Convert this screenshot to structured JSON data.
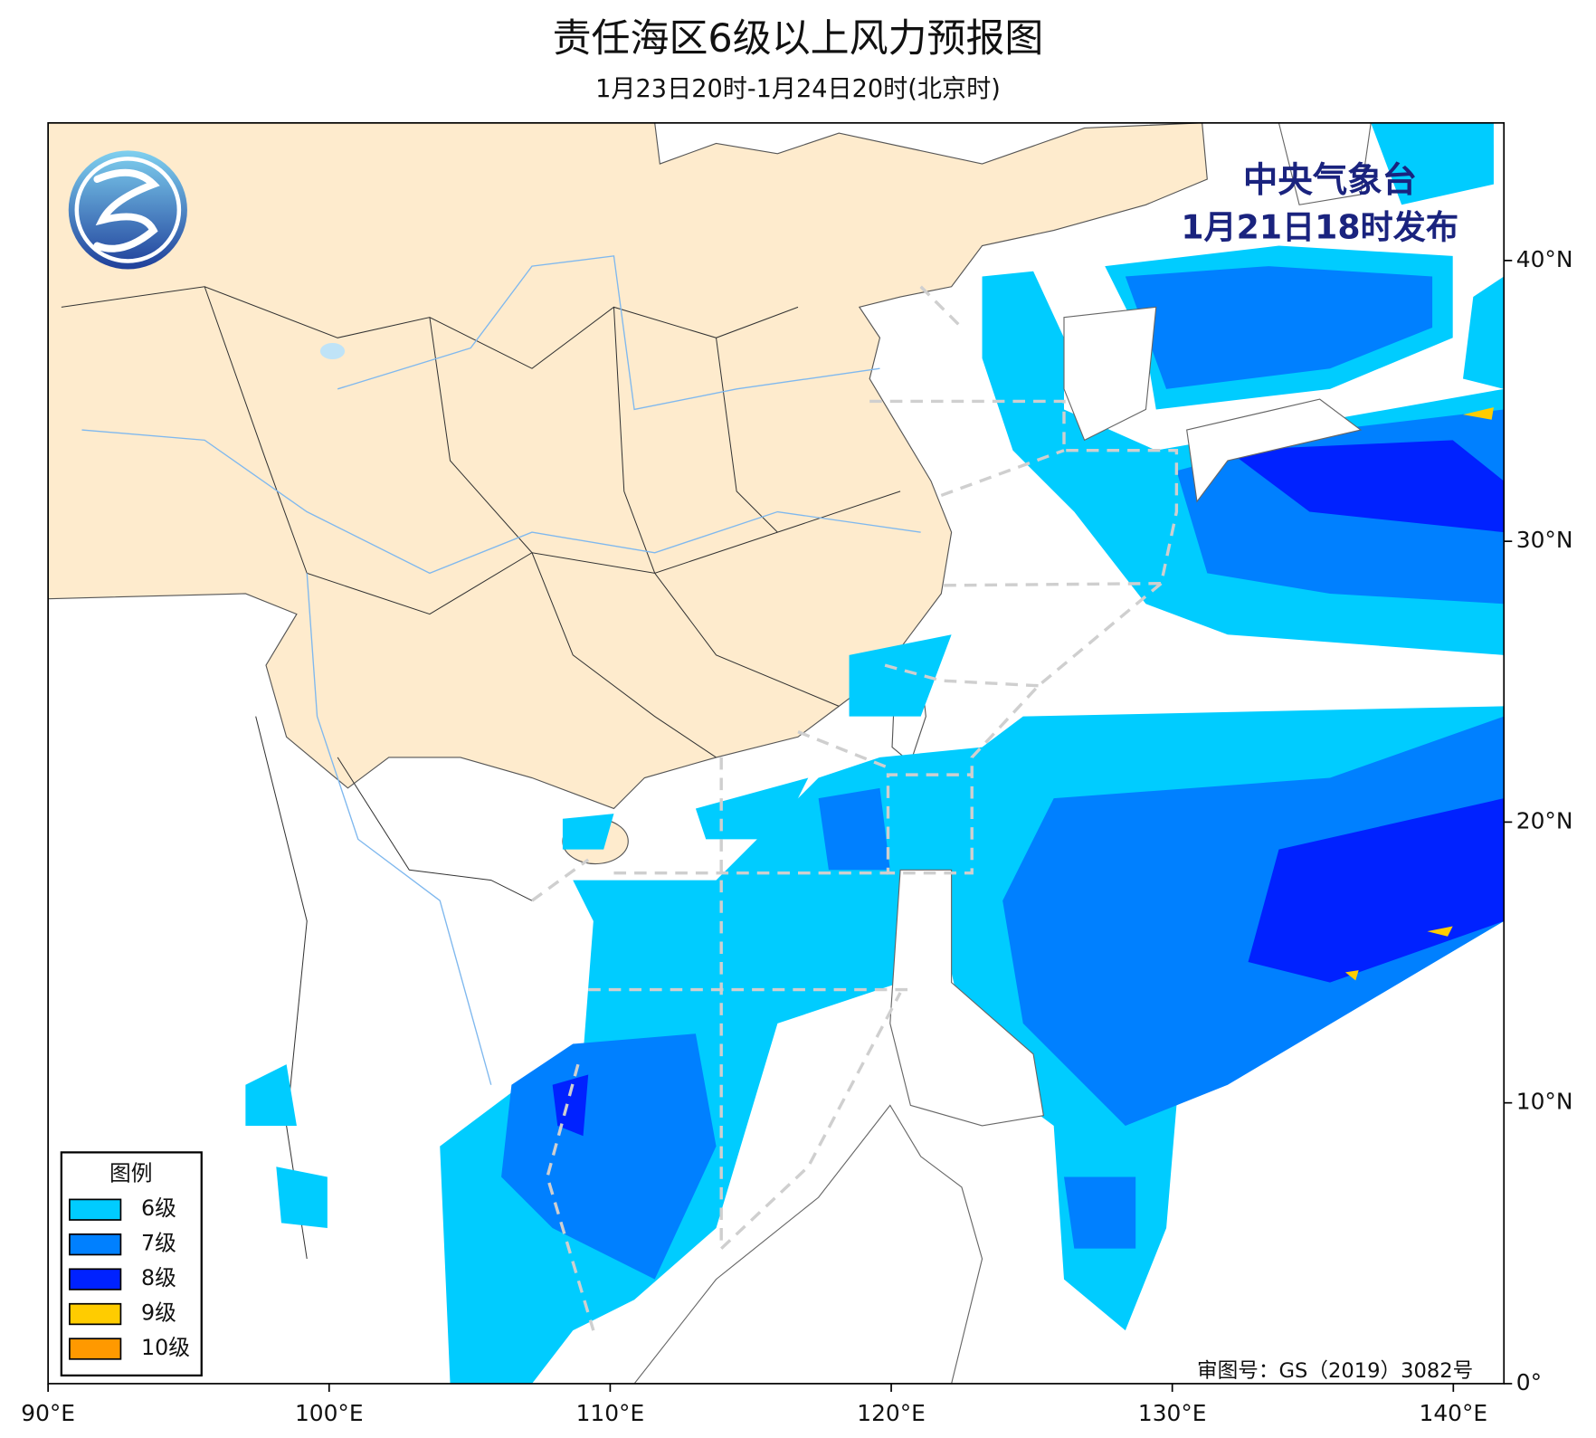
{
  "map": {
    "title": "责任海区6级以上风力预报图",
    "subtitle": "1月23日20时-1月24日20时(北京时)",
    "agency": "中央气象台",
    "issued": "1月21日18时发布",
    "approval": "审图号：GS（2019）3082号",
    "xlim": [
      90,
      141.8
    ],
    "ylim": [
      0,
      44.9
    ],
    "xticks": [
      {
        "value": 90,
        "label": "90°E"
      },
      {
        "value": 100,
        "label": "100°E"
      },
      {
        "value": 110,
        "label": "110°E"
      },
      {
        "value": 120,
        "label": "120°E"
      },
      {
        "value": 130,
        "label": "130°E"
      },
      {
        "value": 140,
        "label": "140°E"
      }
    ],
    "yticks": [
      {
        "value": 0,
        "label": "0°"
      },
      {
        "value": 10,
        "label": "10°N"
      },
      {
        "value": 20,
        "label": "20°N"
      },
      {
        "value": 30,
        "label": "30°N"
      },
      {
        "value": 40,
        "label": "40°N"
      }
    ],
    "legend": {
      "title": "图例",
      "items": [
        {
          "label": "6级",
          "color": "#00ccff"
        },
        {
          "label": "7级",
          "color": "#0080ff"
        },
        {
          "label": "8级",
          "color": "#0022ff"
        },
        {
          "label": "9级",
          "color": "#ffcc00"
        },
        {
          "label": "10级",
          "color": "#ff9900"
        }
      ]
    }
  }
}
